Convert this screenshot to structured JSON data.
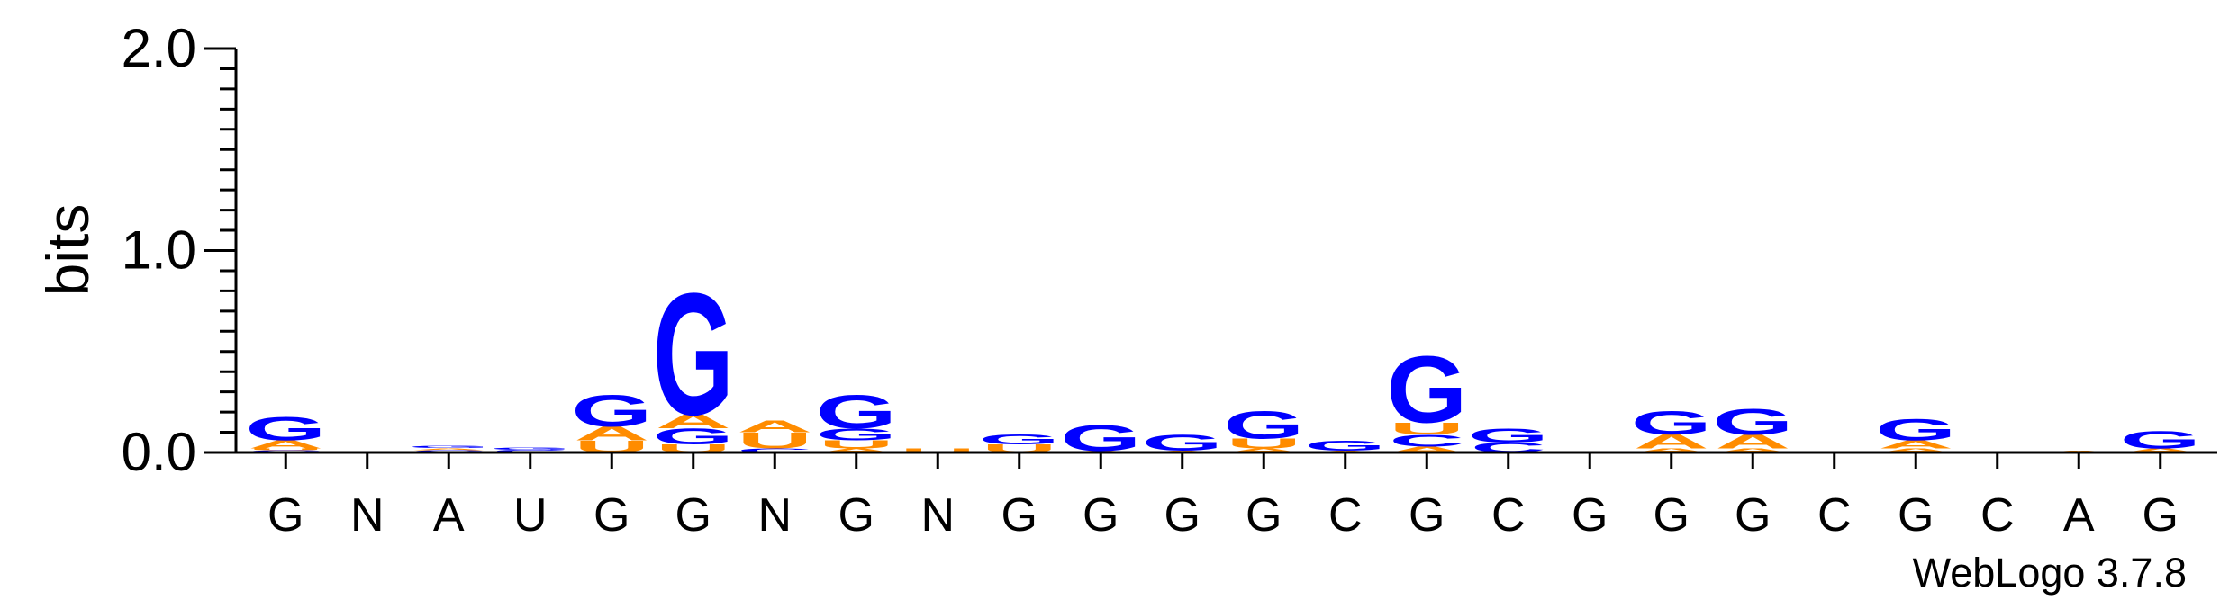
{
  "chart_data": {
    "type": "sequence-logo",
    "ylabel": "bits",
    "ylim": [
      0,
      2.0
    ],
    "yticks": [
      "0.0",
      "1.0",
      "2.0"
    ],
    "y_minor_step": 0.1,
    "x_labels": [
      "G",
      "N",
      "A",
      "U",
      "G",
      "G",
      "N",
      "G",
      "N",
      "G",
      "G",
      "G",
      "G",
      "C",
      "G",
      "C",
      "G",
      "G",
      "G",
      "C",
      "G",
      "C",
      "A",
      "G"
    ],
    "watermark": "WebLogo 3.7.8",
    "colors": {
      "G": "#0000ff",
      "A": "#ff8c00",
      "U": "#ff8c00",
      "C": "#0000ff"
    },
    "columns": [
      [
        [
          "C",
          0.012
        ],
        [
          "U",
          0.008
        ],
        [
          "A",
          0.04
        ],
        [
          "G",
          0.12
        ]
      ],
      [],
      [
        [
          "C",
          0.012
        ],
        [
          "A",
          0.01
        ],
        [
          "G",
          0.012
        ]
      ],
      [
        [
          "C",
          0.014
        ],
        [
          "G",
          0.012
        ]
      ],
      [
        [
          "U",
          0.06
        ],
        [
          "A",
          0.07
        ],
        [
          "G",
          0.16
        ]
      ],
      [
        [
          "U",
          0.04
        ],
        [
          "G",
          0.08
        ],
        [
          "A",
          0.07
        ],
        [
          "G",
          0.62
        ]
      ],
      [
        [
          "C",
          0.02
        ],
        [
          "U",
          0.08
        ],
        [
          "A",
          0.06
        ]
      ],
      [
        [
          "A",
          0.02
        ],
        [
          "U",
          0.04
        ],
        [
          "G",
          0.06
        ],
        [
          "G",
          0.17
        ]
      ],
      [
        [
          "U",
          0.02
        ]
      ],
      [
        [
          "U",
          0.04
        ],
        [
          "G",
          0.05
        ]
      ],
      [
        [
          "A",
          0.01
        ],
        [
          "G",
          0.13
        ]
      ],
      [
        [
          "A",
          0.01
        ],
        [
          "G",
          0.08
        ]
      ],
      [
        [
          "A",
          0.02
        ],
        [
          "U",
          0.05
        ],
        [
          "G",
          0.14
        ]
      ],
      [
        [
          "A",
          0.01
        ],
        [
          "G",
          0.05
        ]
      ],
      [
        [
          "A",
          0.03
        ],
        [
          "C",
          0.06
        ],
        [
          "U",
          0.06
        ],
        [
          "G",
          0.34
        ]
      ],
      [
        [
          "C",
          0.05
        ],
        [
          "G",
          0.07
        ]
      ],
      [],
      [
        [
          "A",
          0.02
        ],
        [
          "A",
          0.07
        ],
        [
          "G",
          0.12
        ]
      ],
      [
        [
          "A",
          0.02
        ],
        [
          "A",
          0.07
        ],
        [
          "G",
          0.13
        ]
      ],
      [],
      [
        [
          "A",
          0.02
        ],
        [
          "A",
          0.04
        ],
        [
          "G",
          0.11
        ]
      ],
      [],
      [
        [
          "A",
          0.01
        ]
      ],
      [
        [
          "A",
          0.02
        ],
        [
          "G",
          0.09
        ]
      ]
    ]
  }
}
